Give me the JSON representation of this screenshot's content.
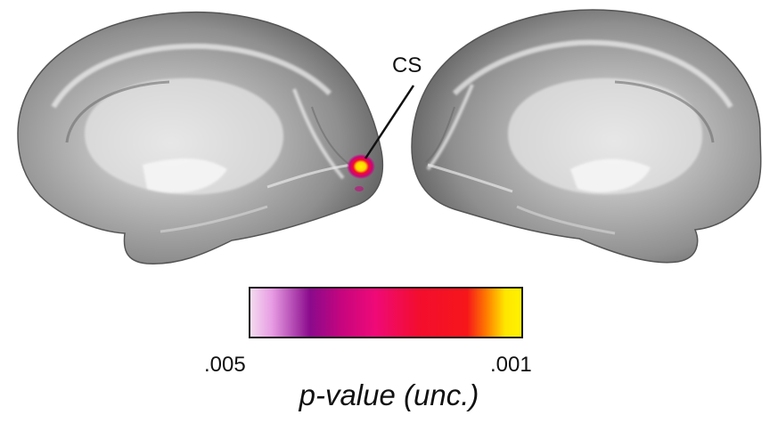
{
  "annotation": {
    "label": "CS"
  },
  "colorbar": {
    "min_label": ".005",
    "max_label": ".001",
    "title": "p-value (unc.)",
    "colors": [
      "#f4dcef",
      "#e79ce3",
      "#8a0a8c",
      "#c8057e",
      "#ef0a78",
      "#f30d2e",
      "#f7161a",
      "#ff7a00",
      "#ffe600",
      "#fff200"
    ]
  },
  "brain": {
    "surface_color": "#8d8d8d",
    "highlight_color": "#f0f0f0"
  }
}
